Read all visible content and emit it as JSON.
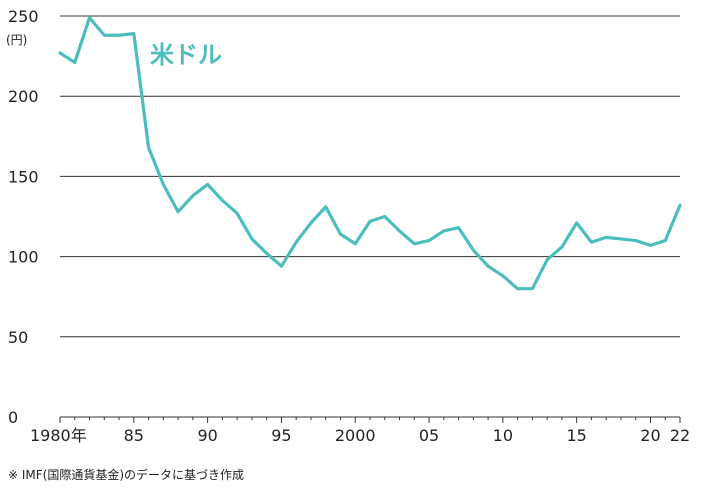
{
  "chart_data": {
    "type": "line",
    "title": "",
    "xlabel": "",
    "ylabel": "",
    "y_unit": "(円)",
    "ylim": [
      0,
      250
    ],
    "xlim": [
      1980,
      2022
    ],
    "y_ticks": [
      0,
      50,
      100,
      150,
      200,
      250
    ],
    "x_ticks": [
      {
        "value": 1980,
        "label": "1980年"
      },
      {
        "value": 1985,
        "label": "85"
      },
      {
        "value": 1990,
        "label": "90"
      },
      {
        "value": 1995,
        "label": "95"
      },
      {
        "value": 2000,
        "label": "2000"
      },
      {
        "value": 2005,
        "label": "05"
      },
      {
        "value": 2010,
        "label": "10"
      },
      {
        "value": 2015,
        "label": "15"
      },
      {
        "value": 2020,
        "label": "20"
      },
      {
        "value": 2022,
        "label": "22"
      }
    ],
    "grid": "horizontal",
    "series": [
      {
        "name": "米ドル",
        "color": "#4bbdbd",
        "x": [
          1980,
          1981,
          1982,
          1983,
          1984,
          1985,
          1986,
          1987,
          1988,
          1989,
          1990,
          1991,
          1992,
          1993,
          1994,
          1995,
          1996,
          1997,
          1998,
          1999,
          2000,
          2001,
          2002,
          2003,
          2004,
          2005,
          2006,
          2007,
          2008,
          2009,
          2010,
          2011,
          2012,
          2013,
          2014,
          2015,
          2016,
          2017,
          2018,
          2019,
          2020,
          2021,
          2022
        ],
        "values": [
          227,
          221,
          249,
          238,
          238,
          239,
          168,
          145,
          128,
          138,
          145,
          135,
          127,
          111,
          102,
          94,
          109,
          121,
          131,
          114,
          108,
          122,
          125,
          116,
          108,
          110,
          116,
          118,
          104,
          94,
          88,
          80,
          80,
          98,
          106,
          121,
          109,
          112,
          111,
          110,
          107,
          110,
          132
        ]
      }
    ]
  },
  "footnote": "※ IMF(国際通貨基金)のデータに基づき作成"
}
